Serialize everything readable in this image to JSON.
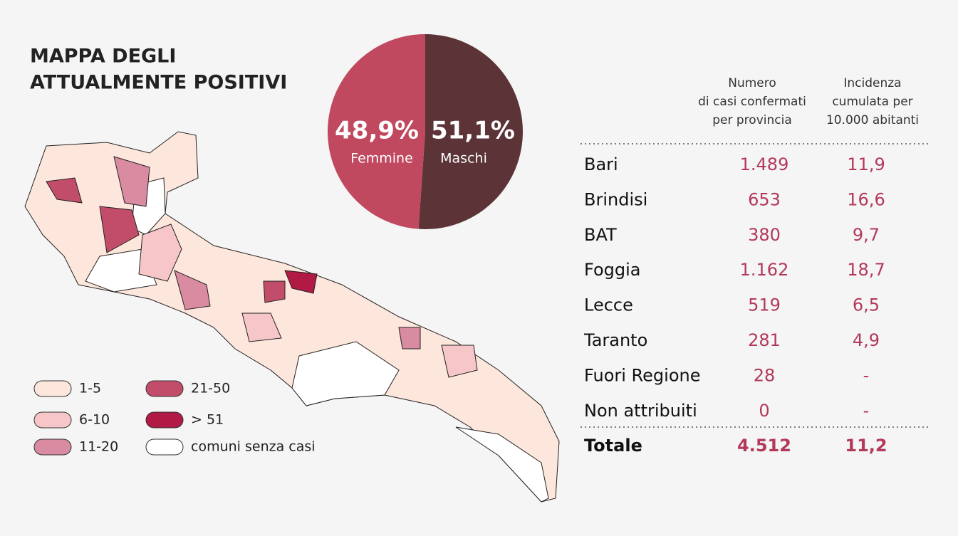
{
  "title": [
    "MAPPA DEGLI",
    "ATTUALMENTE POSITIVI"
  ],
  "map_legend": [
    {
      "label": "1-5",
      "color": "#fde6dc"
    },
    {
      "label": "6-10",
      "color": "#f6c6c9"
    },
    {
      "label": "11-20",
      "color": "#d98ba1"
    },
    {
      "label": "21-50",
      "color": "#c24d6b"
    },
    {
      "label": "> 51",
      "color": "#b01a45"
    },
    {
      "label": "comuni senza casi",
      "color": "#ffffff"
    }
  ],
  "chart_data": {
    "type": "pie",
    "categories": [
      "Femmine",
      "Maschi"
    ],
    "values": [
      48.9,
      51.1
    ],
    "value_labels": [
      "48,9%",
      "51,1%"
    ],
    "colors": [
      "#c0485f",
      "#5c3438"
    ]
  },
  "table": {
    "headers": [
      [
        "Numero",
        "di casi confermati",
        "per provincia"
      ],
      [
        "Incidenza",
        "cumulata per",
        "10.000 abitanti"
      ]
    ],
    "rows": [
      [
        "Bari",
        "1.489",
        "11,9"
      ],
      [
        "Brindisi",
        "653",
        "16,6"
      ],
      [
        "BAT",
        "380",
        "9,7"
      ],
      [
        "Foggia",
        "1.162",
        "18,7"
      ],
      [
        "Lecce",
        "519",
        "6,5"
      ],
      [
        "Taranto",
        "281",
        "4,9"
      ],
      [
        "Fuori Regione",
        "28",
        "-"
      ],
      [
        "Non attribuiti",
        "0",
        "-"
      ]
    ],
    "total": [
      "Totale",
      "4.512",
      "11,2"
    ]
  }
}
